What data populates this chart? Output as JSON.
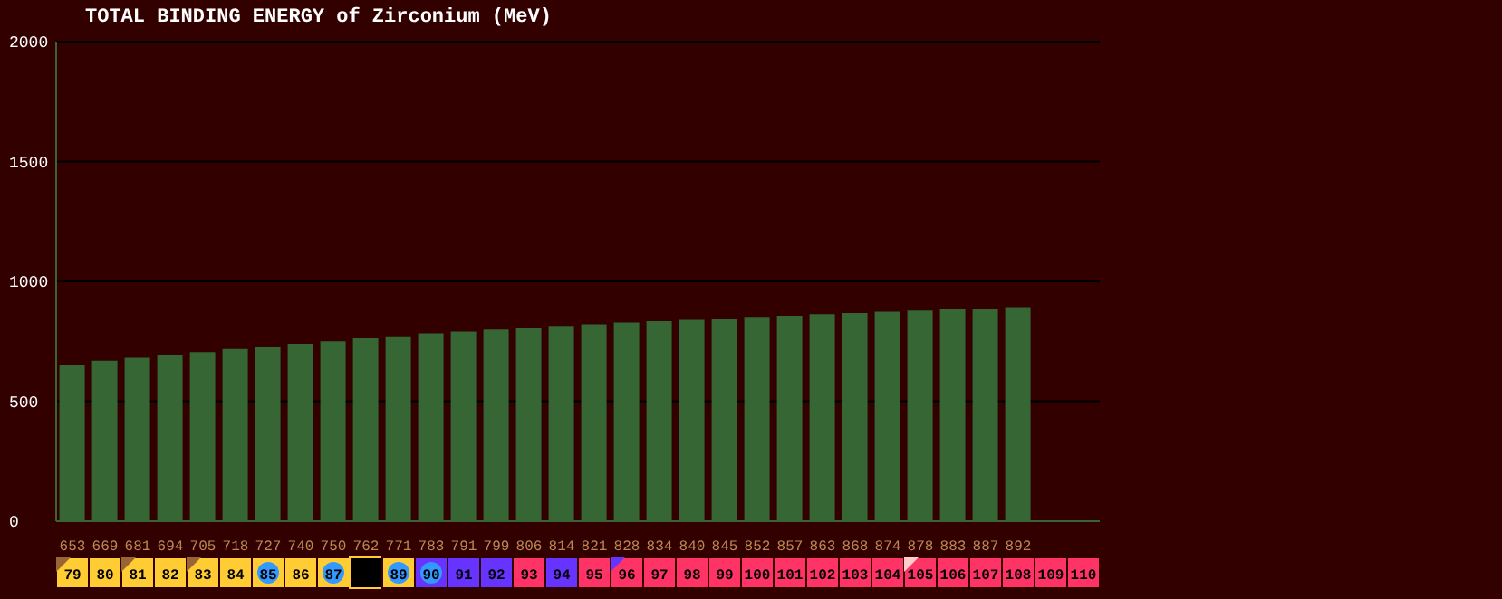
{
  "chart_data": {
    "type": "bar",
    "title": "TOTAL BINDING ENERGY of Zirconium (MeV)",
    "categories": [
      "79",
      "80",
      "81",
      "82",
      "83",
      "84",
      "85",
      "86",
      "87",
      null,
      "89",
      "90",
      "91",
      "92",
      "93",
      "94",
      "95",
      "96",
      "97",
      "98",
      "99",
      "100",
      "101",
      "102",
      "103",
      "104",
      "105",
      "106",
      "107",
      "108",
      "109",
      "110"
    ],
    "values": [
      653,
      669,
      681,
      694,
      705,
      718,
      727,
      740,
      750,
      762,
      771,
      783,
      791,
      799,
      806,
      814,
      821,
      828,
      834,
      840,
      845,
      852,
      857,
      863,
      868,
      874,
      878,
      883,
      887,
      892,
      null,
      null
    ],
    "color": "#356633",
    "ylim": [
      0,
      2000
    ],
    "yticks": [
      0,
      500,
      1000,
      1500,
      2000
    ],
    "grid": "y",
    "data_labels": true
  }
}
